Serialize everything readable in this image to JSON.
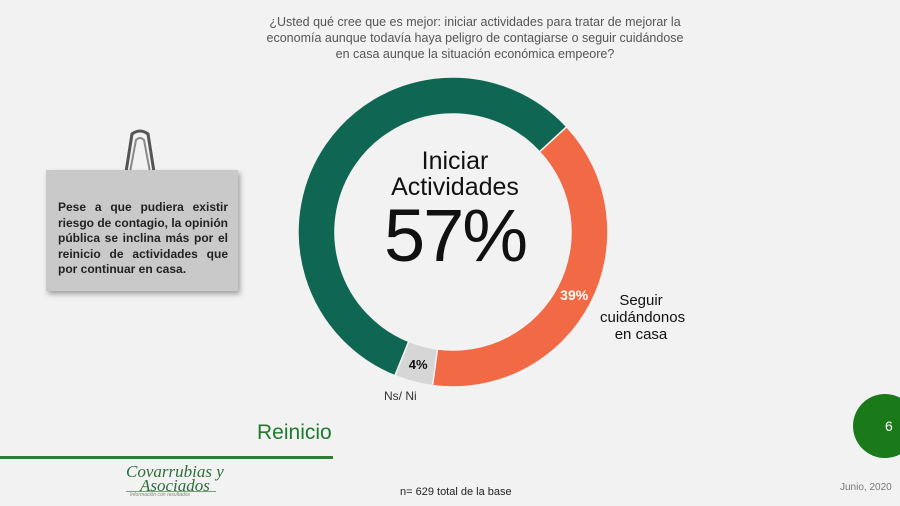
{
  "question": "¿Usted qué cree que es mejor: iniciar actividades para tratar de mejorar la economía aunque todavía haya peligro de contagiarse o seguir cuidándose en casa aunque la situación económica empeore?",
  "note": "Pese a que pudiera existir riesgo de contagio, la opinión pública se inclina más por el reinicio de actividades que por continuar en casa.",
  "chart_data": {
    "type": "pie",
    "title": "¿Usted qué cree que es mejor: iniciar actividades para tratar de mejorar la economía aunque todavía haya peligro de contagiarse o seguir cuidándose en casa aunque la situación económica empeore?",
    "categories": [
      "Iniciar Actividades",
      "Seguir cuidándonos en casa",
      "Ns/ Ni"
    ],
    "values": [
      57,
      39,
      4
    ],
    "value_labels": [
      "57%",
      "39%",
      "4%"
    ],
    "colors": [
      "#0f6652",
      "#f26a45",
      "#d6d6d6"
    ],
    "center_label_line1": "Iniciar",
    "center_label_line2": "Actividades",
    "center_value": "57%",
    "seguir_line1": "Seguir",
    "seguir_line2": "cuidándonos",
    "seguir_line3": "en casa",
    "nsni_label": "Ns/ Ni"
  },
  "section_title": "Reinicio",
  "page_number": "6",
  "logo": {
    "line1": "Covarrubias y",
    "line2": "Asociados",
    "tagline": "Información con resultados"
  },
  "base_note": "n= 629 total de la base",
  "date": "Junio, 2020"
}
